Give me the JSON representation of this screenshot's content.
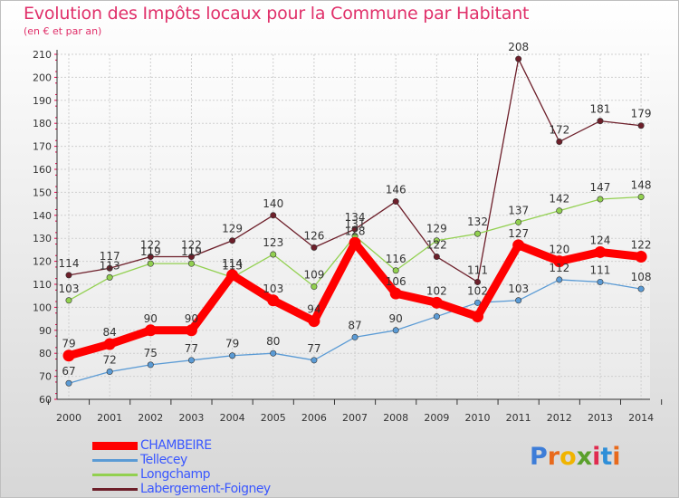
{
  "chart_data": {
    "type": "line",
    "title": "Evolution des Impôts locaux pour la Commune par Habitant",
    "subtitle": "(en € et par an)",
    "categories": [
      "2000",
      "2001",
      "2002",
      "2003",
      "2004",
      "2005",
      "2006",
      "2007",
      "2008",
      "2009",
      "2010",
      "2011",
      "2012",
      "2013",
      "2014"
    ],
    "ylim": [
      60,
      210
    ],
    "yticks": [
      60,
      70,
      80,
      90,
      100,
      110,
      120,
      130,
      140,
      150,
      160,
      170,
      180,
      190,
      200,
      210
    ],
    "grid": true,
    "legend_position": "bottom-left",
    "series": [
      {
        "name": "CHAMBEIRE",
        "color": "#ff0000",
        "values": [
          79,
          84,
          90,
          90,
          114,
          103,
          94,
          128,
          106,
          102,
          96,
          127,
          120,
          124,
          122
        ],
        "labels": [
          "79",
          "84",
          "90",
          "90",
          "114",
          "103",
          "94",
          "128",
          "106",
          "102",
          "",
          "127",
          "120",
          "124",
          "122"
        ]
      },
      {
        "name": "Tellecey",
        "color": "#5b9bd5",
        "values": [
          67,
          72,
          75,
          77,
          79,
          80,
          77,
          87,
          90,
          96,
          102,
          103,
          112,
          111,
          108
        ],
        "labels": [
          "67",
          "72",
          "75",
          "77",
          "79",
          "80",
          "77",
          "87",
          "90",
          "",
          "102",
          "103",
          "112",
          "111",
          "108"
        ]
      },
      {
        "name": "Longchamp",
        "color": "#92d050",
        "values": [
          103,
          113,
          119,
          119,
          113,
          123,
          109,
          131,
          116,
          129,
          132,
          137,
          142,
          147,
          148
        ],
        "labels": [
          "103",
          "113",
          "119",
          "119",
          "113",
          "123",
          "109",
          "131",
          "116",
          "129",
          "132",
          "137",
          "142",
          "147",
          "148"
        ]
      },
      {
        "name": "Labergement-Foigney",
        "color": "#6d1f2a",
        "values": [
          114,
          117,
          122,
          122,
          129,
          140,
          126,
          134,
          146,
          122,
          111,
          208,
          172,
          181,
          179
        ],
        "labels": [
          "114",
          "117",
          "122",
          "122",
          "129",
          "140",
          "126",
          "134",
          "146",
          "122",
          "111",
          "208",
          "172",
          "181",
          "179"
        ]
      }
    ]
  },
  "brand": {
    "letters": [
      "P",
      "r",
      "o",
      "x",
      "i",
      "t",
      "i"
    ],
    "colors": [
      "#3d7dd8",
      "#e86a1c",
      "#f0b400",
      "#5aa02c",
      "#e02b4f",
      "#2f8fd8",
      "#e86a1c"
    ]
  }
}
